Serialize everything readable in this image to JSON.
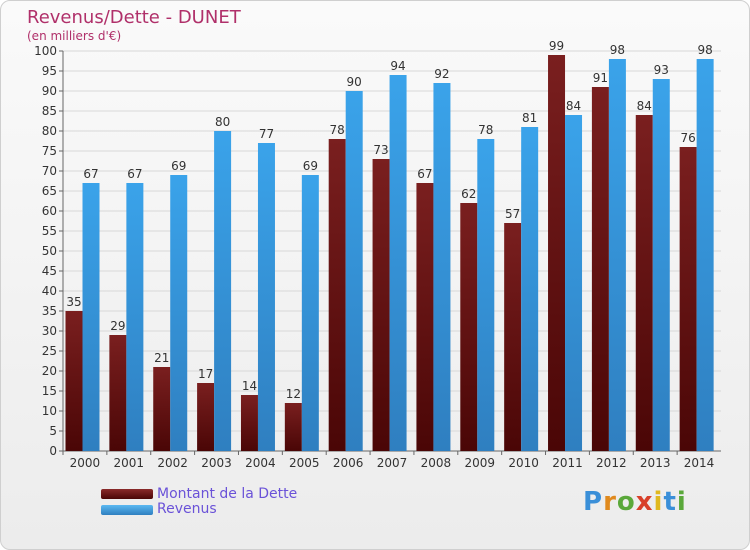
{
  "title": "Revenus/Dette - DUNET",
  "subtitle": "(en milliers d'€)",
  "logo_text": "Proxiti",
  "colors": {
    "dette": "#7a1f1f",
    "dette_dark": "#4a0606",
    "revenus": "#3aa3ea",
    "revenus_dark": "#2f7fc0",
    "text": "#333333",
    "title": "#b0306a",
    "legend": "#6a52d8"
  },
  "chart_data": {
    "type": "bar",
    "title": "Revenus/Dette - DUNET",
    "subtitle": "(en milliers d'€)",
    "xlabel": "",
    "ylabel": "",
    "ylim": [
      0,
      100
    ],
    "yticks": [
      0,
      5,
      10,
      15,
      20,
      25,
      30,
      35,
      40,
      45,
      50,
      55,
      60,
      65,
      70,
      75,
      80,
      85,
      90,
      95,
      100
    ],
    "grid": true,
    "legend_position": "bottom-left",
    "categories": [
      "2000",
      "2001",
      "2002",
      "2003",
      "2004",
      "2005",
      "2006",
      "2007",
      "2008",
      "2009",
      "2010",
      "2011",
      "2012",
      "2013",
      "2014"
    ],
    "series": [
      {
        "name": "Montant de la Dette",
        "values": [
          35,
          29,
          21,
          17,
          14,
          12,
          78,
          73,
          67,
          62,
          57,
          99,
          91,
          84,
          76
        ]
      },
      {
        "name": "Revenus",
        "values": [
          67,
          67,
          69,
          80,
          77,
          69,
          90,
          94,
          92,
          78,
          81,
          84,
          98,
          93,
          98
        ]
      }
    ]
  }
}
